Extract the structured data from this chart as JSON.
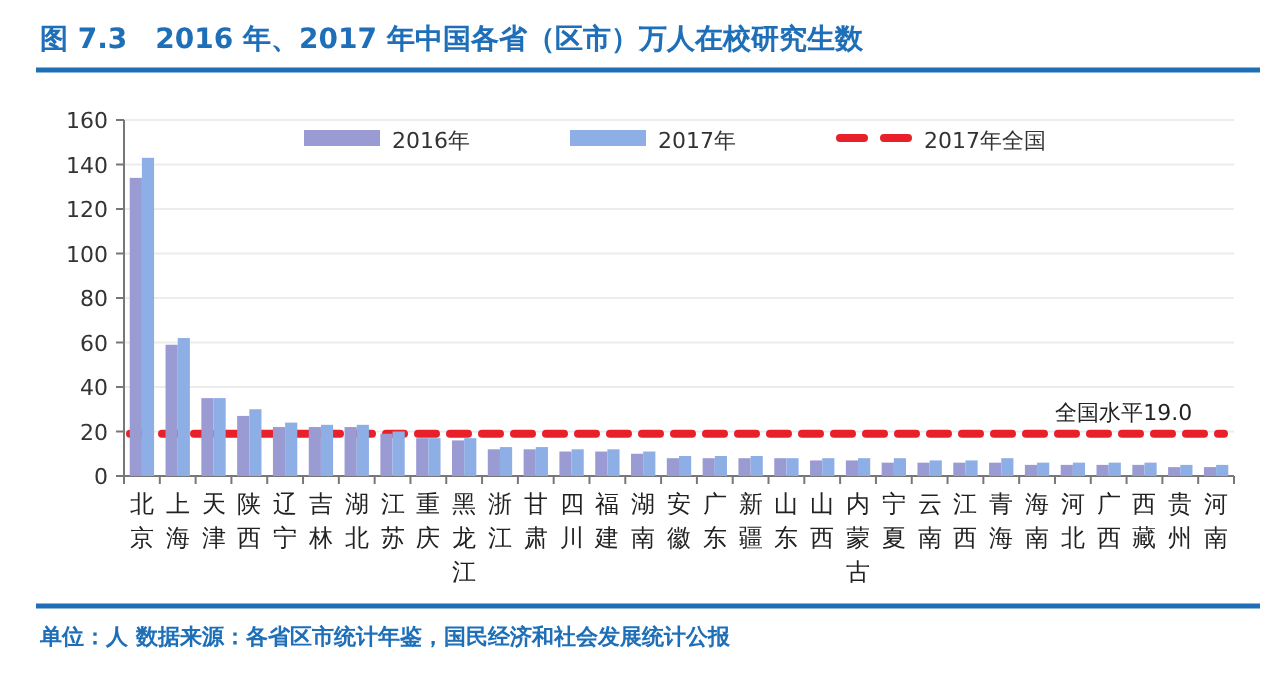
{
  "chart_data": {
    "type": "bar",
    "title": "图 7.3　2016 年、2017 年中国各省（区市）万人在校研究生数",
    "categories": [
      "北京",
      "上海",
      "天津",
      "陕西",
      "辽宁",
      "吉林",
      "湖北",
      "江苏",
      "重庆",
      "黑龙江",
      "浙江",
      "甘肃",
      "四川",
      "福建",
      "湖南",
      "安徽",
      "广东",
      "新疆",
      "山东",
      "山西",
      "内蒙古",
      "宁夏",
      "云南",
      "江西",
      "青海",
      "海南",
      "河北",
      "广西",
      "西藏",
      "贵州",
      "河南"
    ],
    "series": [
      {
        "name": "2016年",
        "color": "#9b9bd3",
        "values": [
          134,
          59,
          35,
          27,
          22,
          22,
          22,
          19,
          17,
          16,
          12,
          12,
          11,
          11,
          10,
          8,
          8,
          8,
          8,
          7,
          7,
          6,
          6,
          6,
          6,
          5,
          5,
          5,
          5,
          4,
          4
        ]
      },
      {
        "name": "2017年",
        "color": "#8eaee6",
        "values": [
          143,
          62,
          35,
          30,
          24,
          23,
          23,
          20,
          17,
          17,
          13,
          13,
          12,
          12,
          11,
          9,
          9,
          9,
          8,
          8,
          8,
          8,
          7,
          7,
          8,
          6,
          6,
          6,
          6,
          5,
          5
        ]
      }
    ],
    "ylim": [
      0,
      160
    ],
    "yticks": [
      0,
      20,
      40,
      60,
      80,
      100,
      120,
      140,
      160
    ],
    "grid": "y",
    "legend": "top",
    "ref_lines": [
      {
        "axis": "y",
        "value": 19,
        "label": "2017年全国",
        "color": "#e8202a",
        "line_style": "dashed"
      }
    ],
    "annotations": [
      {
        "text": "全国水平19.0",
        "x": "贵州",
        "y": 19
      },
      "单位：人  数据来源：各省区市统计年鉴，国民经济和社会发展统计公报"
    ]
  }
}
